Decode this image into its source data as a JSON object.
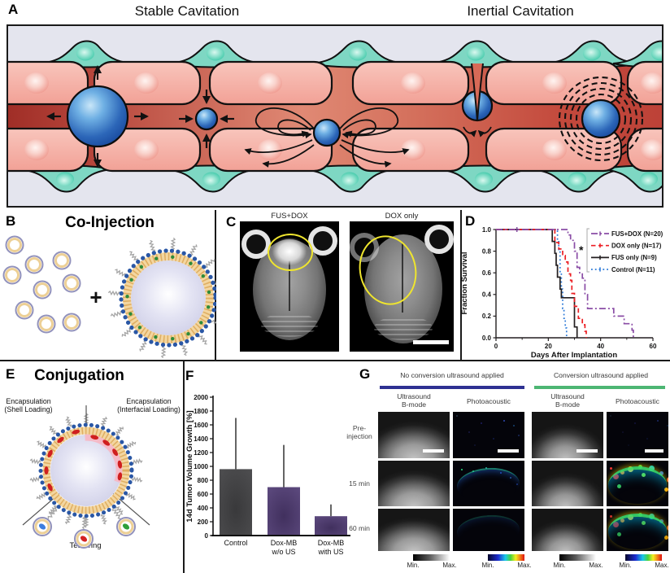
{
  "panels": {
    "A": {
      "label": "A",
      "title_left": "Stable Cavitation",
      "title_right": "Inertial Cavitation"
    },
    "B": {
      "label": "B",
      "title": "Co-Injection",
      "plus_sign": "+"
    },
    "C": {
      "label": "C",
      "image_titles": [
        "FUS+DOX",
        "DOX only"
      ]
    },
    "D": {
      "label": "D"
    },
    "E": {
      "label": "E",
      "title": "Conjugation",
      "shell_label": [
        "Encapsulation",
        "(Shell Loading)"
      ],
      "interfacial_label": [
        "Encapsulation",
        "(Interfacial Loading)"
      ],
      "tether_label": "Tethering"
    },
    "F": {
      "label": "F"
    },
    "G": {
      "label": "G",
      "group_headers": [
        {
          "title": "No conversion ultrasound applied",
          "underline_color": "#2e3192"
        },
        {
          "title": "Conversion ultrasound applied",
          "underline_color": "#4db673"
        }
      ],
      "column_headers": [
        [
          "Ultrasound",
          "B-mode"
        ],
        [
          "Photoacoustic"
        ],
        [
          "Ultrasound",
          "B-mode"
        ],
        [
          "Photoacoustic"
        ]
      ],
      "row_labels": [
        [
          "Pre-",
          "injection"
        ],
        [
          "15 min"
        ],
        [
          "60 min"
        ]
      ],
      "colorbar_labels": {
        "min": "Min.",
        "max": "Max."
      }
    }
  },
  "chart_data": [
    {
      "type": "line",
      "panel": "D",
      "subtype": "kaplan-meier-survival",
      "xlabel": "Days After Implantation",
      "ylabel": "Fraction Survival",
      "xlim": [
        0,
        60
      ],
      "ylim": [
        0.0,
        1.0
      ],
      "xticks": [
        0,
        20,
        40,
        60
      ],
      "xticks_minor": [
        10,
        30,
        50
      ],
      "yticks": [
        0.0,
        0.2,
        0.4,
        0.6,
        0.8,
        1.0
      ],
      "significance_label": "*",
      "legend_position": "upper-right",
      "series": [
        {
          "name": "FUS+DOX (N=20)",
          "color": "#8a4da6",
          "dash": "dashdot",
          "points": [
            [
              0,
              1.0
            ],
            [
              26.5,
              1.0
            ],
            [
              27.5,
              0.95
            ],
            [
              28.5,
              0.9
            ],
            [
              30,
              0.8
            ],
            [
              31,
              0.65
            ],
            [
              32,
              0.6
            ],
            [
              33,
              0.55
            ],
            [
              34,
              0.4
            ],
            [
              35,
              0.27
            ],
            [
              43,
              0.27
            ],
            [
              45,
              0.2
            ],
            [
              49,
              0.13
            ],
            [
              52,
              0.07
            ],
            [
              52.5,
              0.0
            ]
          ]
        },
        {
          "name": "DOX only (N=17)",
          "color": "#ec1f24",
          "dash": "dashed",
          "points": [
            [
              0,
              1.0
            ],
            [
              21.5,
              1.0
            ],
            [
              22.5,
              0.88
            ],
            [
              24,
              0.82
            ],
            [
              25.5,
              0.76
            ],
            [
              26.5,
              0.7
            ],
            [
              27.5,
              0.59
            ],
            [
              28.5,
              0.53
            ],
            [
              29,
              0.41
            ],
            [
              30,
              0.29
            ],
            [
              31.5,
              0.18
            ],
            [
              33,
              0.12
            ],
            [
              34,
              0.06
            ],
            [
              34.5,
              0.0
            ]
          ]
        },
        {
          "name": "FUS only (N=9)",
          "color": "#231f20",
          "dash": "solid",
          "points": [
            [
              0,
              1.0
            ],
            [
              21,
              1.0
            ],
            [
              21.5,
              0.89
            ],
            [
              22.5,
              0.78
            ],
            [
              23,
              0.67
            ],
            [
              23.5,
              0.56
            ],
            [
              24.5,
              0.45
            ],
            [
              25,
              0.37
            ],
            [
              29,
              0.37
            ],
            [
              30,
              0.1
            ],
            [
              30.5,
              0.1
            ],
            [
              31,
              0.0
            ]
          ]
        },
        {
          "name": "Control (N=11)",
          "color": "#2b79d8",
          "dash": "dotted",
          "points": [
            [
              0,
              1.0
            ],
            [
              23,
              1.0
            ],
            [
              23.5,
              0.9
            ],
            [
              24,
              0.8
            ],
            [
              24.5,
              0.6
            ],
            [
              25,
              0.45
            ],
            [
              25.5,
              0.27
            ],
            [
              26,
              0.18
            ],
            [
              26.5,
              0.09
            ],
            [
              27,
              0.0
            ]
          ]
        }
      ]
    },
    {
      "type": "bar",
      "panel": "F",
      "ylabel": "14d Tumor Volume Growth [%]",
      "ylim": [
        0,
        2000
      ],
      "ytick_step": 200,
      "categories": [
        [
          "Control"
        ],
        [
          "Dox-MB",
          "w/o US"
        ],
        [
          "Dox-MB",
          "with US"
        ]
      ],
      "values": [
        960,
        700,
        280
      ],
      "error_upper": [
        1700,
        1310,
        450
      ],
      "colors": [
        "#4f4f51",
        "#5e4b80",
        "#5e4b80"
      ]
    }
  ]
}
